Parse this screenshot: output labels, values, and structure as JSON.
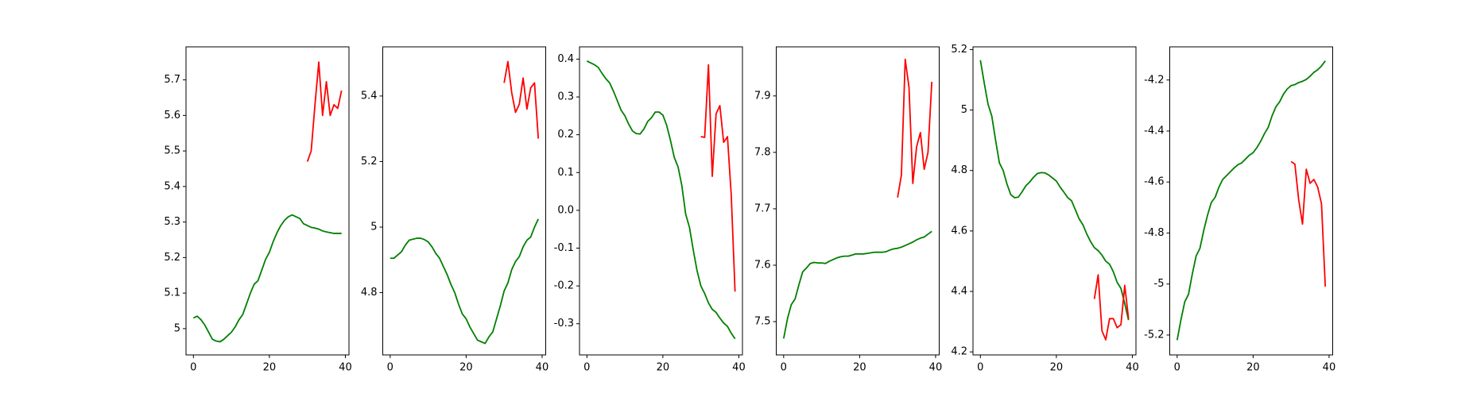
{
  "chart_data": [
    {
      "type": "line",
      "xlim": [
        -1.95,
        40.95
      ],
      "xticks": [
        0,
        20,
        40
      ],
      "ylim": [
        4.926,
        5.793
      ],
      "yticks": [
        5.0,
        5.1,
        5.2,
        5.3,
        5.4,
        5.5,
        5.6,
        5.7
      ],
      "series": [
        {
          "color": "#008000",
          "x": [
            0,
            1,
            2,
            3,
            4,
            5,
            6,
            7,
            8,
            9,
            10,
            11,
            12,
            13,
            14,
            15,
            16,
            17,
            18,
            19,
            20,
            21,
            22,
            23,
            24,
            25,
            26,
            27,
            28,
            29,
            30,
            31,
            32,
            33,
            34,
            35,
            36,
            37,
            38,
            39
          ],
          "values": [
            5.03,
            5.035,
            5.025,
            5.01,
            4.99,
            4.97,
            4.965,
            4.963,
            4.97,
            4.98,
            4.99,
            5.005,
            5.025,
            5.04,
            5.07,
            5.1,
            5.125,
            5.135,
            5.165,
            5.195,
            5.215,
            5.245,
            5.27,
            5.29,
            5.305,
            5.315,
            5.32,
            5.315,
            5.31,
            5.295,
            5.29,
            5.285,
            5.283,
            5.28,
            5.275,
            5.272,
            5.27,
            5.268,
            5.268,
            5.268
          ]
        },
        {
          "color": "#ff0000",
          "x": [
            30,
            31,
            32,
            33,
            34,
            35,
            36,
            37,
            38,
            39
          ],
          "values": [
            5.47,
            5.5,
            5.63,
            5.75,
            5.6,
            5.695,
            5.6,
            5.63,
            5.62,
            5.67
          ]
        }
      ]
    },
    {
      "type": "line",
      "xlim": [
        -1.95,
        40.95
      ],
      "xticks": [
        0,
        20,
        40
      ],
      "ylim": [
        4.61,
        5.55
      ],
      "yticks": [
        4.8,
        5.0,
        5.2,
        5.4
      ],
      "series": [
        {
          "color": "#008000",
          "x": [
            0,
            1,
            2,
            3,
            4,
            5,
            6,
            7,
            8,
            9,
            10,
            11,
            12,
            13,
            14,
            15,
            16,
            17,
            18,
            19,
            20,
            21,
            22,
            23,
            24,
            25,
            26,
            27,
            28,
            29,
            30,
            31,
            32,
            33,
            34,
            35,
            36,
            37,
            38,
            39
          ],
          "values": [
            4.905,
            4.905,
            4.915,
            4.925,
            4.945,
            4.96,
            4.963,
            4.966,
            4.966,
            4.962,
            4.955,
            4.94,
            4.92,
            4.905,
            4.88,
            4.855,
            4.825,
            4.8,
            4.765,
            4.735,
            4.72,
            4.695,
            4.675,
            4.655,
            4.65,
            4.645,
            4.665,
            4.68,
            4.72,
            4.76,
            4.805,
            4.83,
            4.87,
            4.895,
            4.91,
            4.94,
            4.96,
            4.97,
            5.0,
            5.025
          ]
        },
        {
          "color": "#ff0000",
          "x": [
            30,
            31,
            32,
            33,
            34,
            35,
            36,
            37,
            38,
            39
          ],
          "values": [
            5.44,
            5.505,
            5.41,
            5.35,
            5.375,
            5.455,
            5.36,
            5.425,
            5.44,
            5.27
          ]
        }
      ]
    },
    {
      "type": "line",
      "xlim": [
        -1.95,
        40.95
      ],
      "xticks": [
        0,
        20,
        40
      ],
      "ylim": [
        -0.3825,
        0.4325
      ],
      "yticks": [
        -0.3,
        -0.2,
        -0.1,
        {
          "value": 0,
          "label": "0.0"
        },
        0.1,
        0.2,
        0.3,
        0.4
      ],
      "series": [
        {
          "color": "#008000",
          "x": [
            0,
            1,
            2,
            3,
            4,
            5,
            6,
            7,
            8,
            9,
            10,
            11,
            12,
            13,
            14,
            15,
            16,
            17,
            18,
            19,
            20,
            21,
            22,
            23,
            24,
            25,
            26,
            27,
            28,
            29,
            30,
            31,
            32,
            33,
            34,
            35,
            36,
            37,
            38,
            39
          ],
          "values": [
            0.395,
            0.39,
            0.385,
            0.378,
            0.362,
            0.348,
            0.337,
            0.315,
            0.29,
            0.265,
            0.25,
            0.228,
            0.21,
            0.203,
            0.202,
            0.215,
            0.235,
            0.245,
            0.26,
            0.26,
            0.252,
            0.225,
            0.185,
            0.14,
            0.115,
            0.065,
            -0.01,
            -0.045,
            -0.105,
            -0.16,
            -0.2,
            -0.22,
            -0.245,
            -0.262,
            -0.27,
            -0.285,
            -0.298,
            -0.307,
            -0.325,
            -0.34
          ]
        },
        {
          "color": "#ff0000",
          "x": [
            30,
            31,
            32,
            33,
            34,
            35,
            36,
            37,
            38,
            39
          ],
          "values": [
            0.195,
            0.193,
            0.385,
            0.09,
            0.255,
            0.277,
            0.18,
            0.195,
            0.04,
            -0.215
          ]
        }
      ]
    },
    {
      "type": "line",
      "xlim": [
        -1.95,
        40.95
      ],
      "xticks": [
        0,
        20,
        40
      ],
      "ylim": [
        7.441,
        7.987
      ],
      "yticks": [
        7.5,
        7.6,
        7.7,
        7.8,
        7.9
      ],
      "series": [
        {
          "color": "#008000",
          "x": [
            0,
            1,
            2,
            3,
            4,
            5,
            6,
            7,
            8,
            9,
            10,
            11,
            12,
            13,
            14,
            15,
            16,
            17,
            18,
            19,
            20,
            21,
            22,
            23,
            24,
            25,
            26,
            27,
            28,
            29,
            30,
            31,
            32,
            33,
            34,
            35,
            36,
            37,
            38,
            39
          ],
          "values": [
            7.47,
            7.505,
            7.53,
            7.54,
            7.565,
            7.588,
            7.595,
            7.603,
            7.605,
            7.604,
            7.604,
            7.603,
            7.607,
            7.61,
            7.613,
            7.615,
            7.616,
            7.616,
            7.618,
            7.62,
            7.62,
            7.62,
            7.621,
            7.622,
            7.623,
            7.623,
            7.623,
            7.624,
            7.627,
            7.629,
            7.63,
            7.632,
            7.635,
            7.638,
            7.641,
            7.645,
            7.648,
            7.65,
            7.655,
            7.66
          ]
        },
        {
          "color": "#ff0000",
          "x": [
            30,
            31,
            32,
            33,
            34,
            35,
            36,
            37,
            38,
            39
          ],
          "values": [
            7.72,
            7.76,
            7.965,
            7.915,
            7.745,
            7.81,
            7.835,
            7.77,
            7.8,
            7.925
          ]
        }
      ]
    },
    {
      "type": "line",
      "xlim": [
        -1.95,
        40.95
      ],
      "xticks": [
        0,
        20,
        40
      ],
      "ylim": [
        4.19,
        5.209
      ],
      "yticks": [
        4.2,
        4.4,
        4.6,
        4.8,
        5.0,
        5.2
      ],
      "series": [
        {
          "color": "#008000",
          "x": [
            0,
            1,
            2,
            3,
            4,
            5,
            6,
            7,
            8,
            9,
            10,
            11,
            12,
            13,
            14,
            15,
            16,
            17,
            18,
            19,
            20,
            21,
            22,
            23,
            24,
            25,
            26,
            27,
            28,
            29,
            30,
            31,
            32,
            33,
            34,
            35,
            36,
            37,
            38,
            39
          ],
          "values": [
            5.165,
            5.09,
            5.02,
            4.98,
            4.9,
            4.825,
            4.8,
            4.755,
            4.72,
            4.71,
            4.712,
            4.73,
            4.75,
            4.762,
            4.778,
            4.79,
            4.793,
            4.792,
            4.785,
            4.775,
            4.765,
            4.745,
            4.728,
            4.71,
            4.7,
            4.67,
            4.64,
            4.62,
            4.59,
            4.565,
            4.545,
            4.535,
            4.52,
            4.5,
            4.49,
            4.465,
            4.43,
            4.41,
            4.36,
            4.305
          ]
        },
        {
          "color": "#ff0000",
          "x": [
            30,
            31,
            32,
            33,
            34,
            35,
            36,
            37,
            38,
            39
          ],
          "values": [
            4.375,
            4.455,
            4.27,
            4.24,
            4.31,
            4.31,
            4.28,
            4.29,
            4.42,
            4.31
          ]
        }
      ]
    },
    {
      "type": "line",
      "xlim": [
        -1.95,
        40.95
      ],
      "xticks": [
        0,
        20,
        40
      ],
      "ylim": [
        -5.278,
        -4.07
      ],
      "yticks": [
        -5.2,
        -5.0,
        -4.8,
        -4.6,
        -4.4,
        -4.2
      ],
      "series": [
        {
          "color": "#008000",
          "x": [
            0,
            1,
            2,
            3,
            4,
            5,
            6,
            7,
            8,
            9,
            10,
            11,
            12,
            13,
            14,
            15,
            16,
            17,
            18,
            19,
            20,
            21,
            22,
            23,
            24,
            25,
            26,
            27,
            28,
            29,
            30,
            31,
            32,
            33,
            34,
            35,
            36,
            37,
            38,
            39
          ],
          "values": [
            -5.22,
            -5.14,
            -5.07,
            -5.04,
            -4.96,
            -4.89,
            -4.86,
            -4.79,
            -4.73,
            -4.68,
            -4.66,
            -4.62,
            -4.59,
            -4.575,
            -4.56,
            -4.545,
            -4.532,
            -4.525,
            -4.51,
            -4.495,
            -4.485,
            -4.465,
            -4.44,
            -4.41,
            -4.385,
            -4.34,
            -4.305,
            -4.285,
            -4.255,
            -4.235,
            -4.222,
            -4.218,
            -4.21,
            -4.205,
            -4.198,
            -4.185,
            -4.17,
            -4.16,
            -4.145,
            -4.125
          ]
        },
        {
          "color": "#ff0000",
          "x": [
            30,
            31,
            32,
            33,
            34,
            35,
            36,
            37,
            38,
            39
          ],
          "values": [
            -4.52,
            -4.53,
            -4.67,
            -4.765,
            -4.55,
            -4.605,
            -4.59,
            -4.62,
            -4.685,
            -5.01
          ]
        }
      ]
    }
  ]
}
